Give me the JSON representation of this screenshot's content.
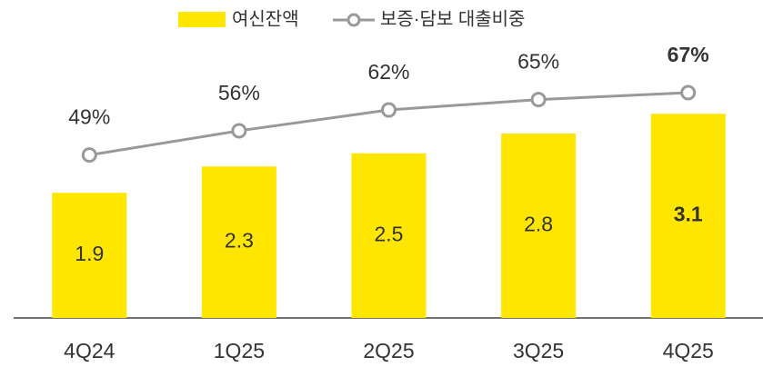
{
  "chart_data": {
    "type": "bar_line",
    "categories": [
      "4Q24",
      "1Q25",
      "2Q25",
      "3Q25",
      "4Q25"
    ],
    "series": [
      {
        "name": "여신잔액",
        "type": "bar",
        "color": "#FFE600",
        "values": [
          1.9,
          2.3,
          2.5,
          2.8,
          3.1
        ]
      },
      {
        "name": "보증·담보 대출비중",
        "type": "line",
        "axis": "y2",
        "color": "#999999",
        "values": [
          49,
          56,
          62,
          65,
          67
        ],
        "value_labels": [
          "49%",
          "56%",
          "62%",
          "65%",
          "67%"
        ]
      }
    ],
    "ylim": [
      0,
      4
    ],
    "y2lim": [
      2,
      78
    ],
    "legend": "top"
  }
}
